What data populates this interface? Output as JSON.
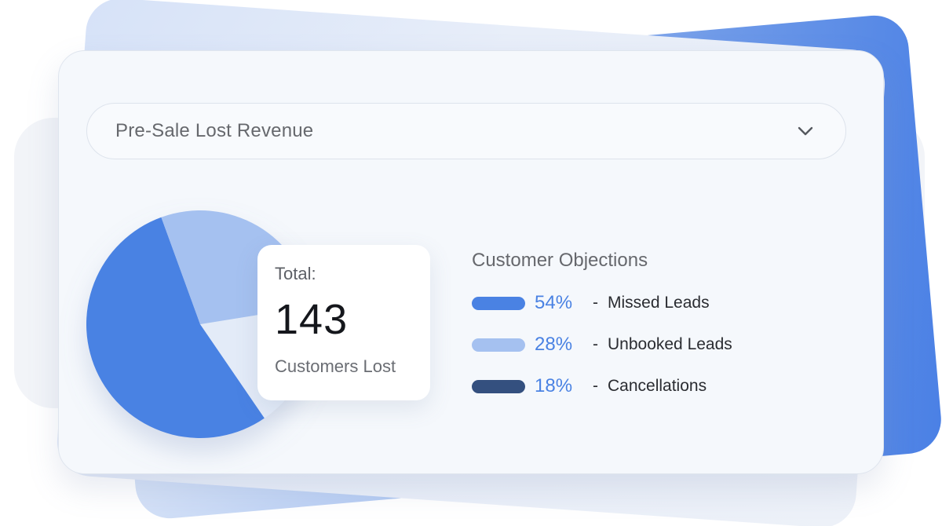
{
  "dropdown": {
    "selected": "Pre-Sale Lost Revenue",
    "icon": "chevron-down-icon"
  },
  "summary": {
    "total_label": "Total:",
    "total_value": "143",
    "caption": "Customers Lost"
  },
  "legend": {
    "title": "Customer Objections",
    "items": [
      {
        "percent": "54%",
        "separator": "-",
        "label": "Missed Leads",
        "color": "#4a82e3"
      },
      {
        "percent": "28%",
        "separator": "-",
        "label": "Unbooked Leads",
        "color": "#a5c1f0"
      },
      {
        "percent": "18%",
        "separator": "-",
        "label": "Cancellations",
        "color": "#34507f"
      }
    ]
  },
  "chart_data": {
    "type": "pie",
    "categories": [
      "Missed Leads",
      "Unbooked Leads",
      "Cancellations"
    ],
    "values": [
      54,
      28,
      18
    ],
    "colors": [
      "#4a82e3",
      "#a5c1f0",
      "#e3ebf8"
    ]
  },
  "colors": {
    "accent": "#4a82e3",
    "light_accent": "#a5c1f0",
    "dark_accent": "#34507f",
    "card_background": "#f5f8fc"
  }
}
